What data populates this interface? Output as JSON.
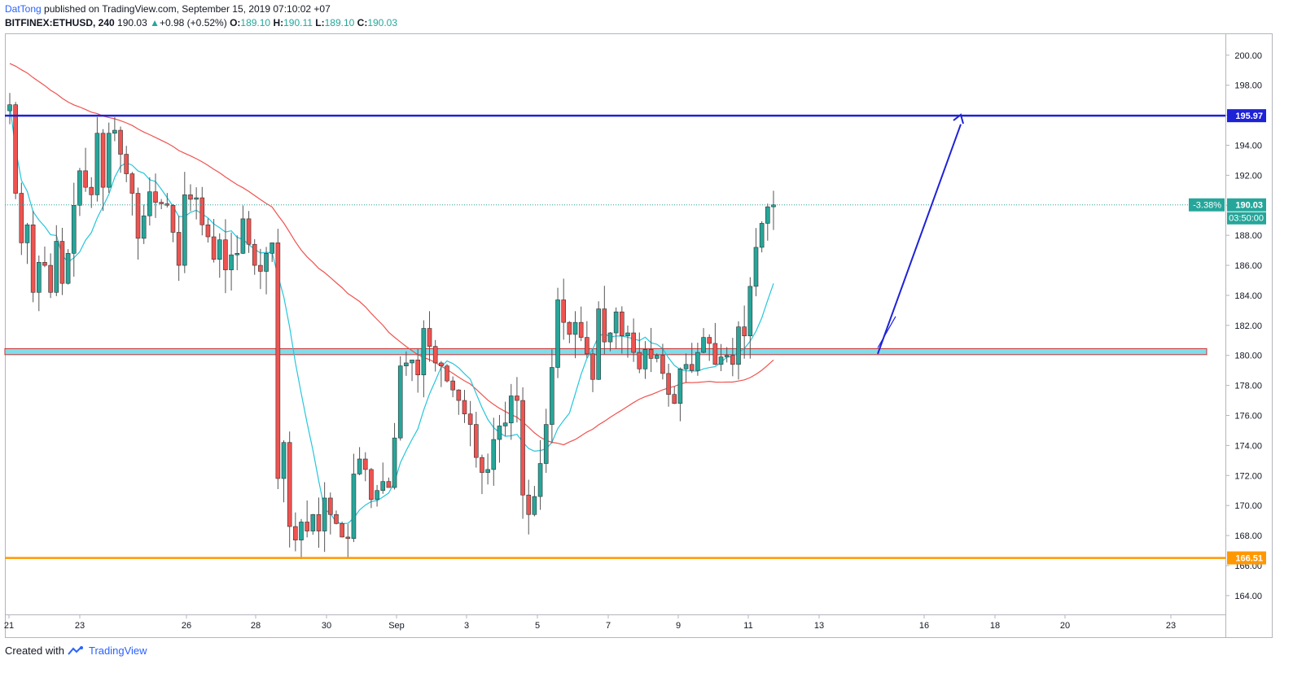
{
  "header": {
    "author": "DatTong",
    "published": "published on TradingView.com, September 15, 2019 07:10:02 +07",
    "symbol": "BITFINEX:ETHUSD",
    "interval": "240",
    "last": "190.03",
    "change": "+0.98 (+0.52%)",
    "o_label": "O:",
    "o": "189.10",
    "h_label": "H:",
    "h": "190.11",
    "l_label": "L:",
    "l": "189.10",
    "c_label": "C:",
    "c": "190.03"
  },
  "footer": {
    "created": "Created with",
    "brand": "TradingView",
    "logo_icon": "tradingview-logo-icon"
  },
  "colors": {
    "up": "#26a69a",
    "down": "#ef5350",
    "ma_fast": "#26c6da",
    "ma_slow": "#ef5350",
    "resistance": "#1e22d6",
    "support_zone": "#80deea",
    "support": "#ff9800",
    "arrow": "#1e22d6"
  },
  "chart_data": {
    "type": "candlestick",
    "symbol": "BITFINEX:ETHUSD",
    "ylim": [
      162.8,
      201.4
    ],
    "y_ticks": [
      "200.00",
      "198.00",
      "196.00",
      "194.00",
      "192.00",
      "190.00",
      "188.00",
      "186.00",
      "184.00",
      "182.00",
      "180.00",
      "178.00",
      "176.00",
      "174.00",
      "172.00",
      "170.00",
      "168.00",
      "166.00",
      "164.00"
    ],
    "x_ticks": [
      "21",
      "23",
      "26",
      "28",
      "30",
      "Sep",
      "3",
      "5",
      "7",
      "9",
      "11",
      "13",
      "16",
      "18",
      "20",
      "23"
    ],
    "levels": [
      {
        "name": "resistance",
        "price": 195.97,
        "label": "195.97"
      },
      {
        "name": "support",
        "price": 166.51,
        "label": "166.51"
      }
    ],
    "zone": {
      "low": 180.05,
      "high": 180.45
    },
    "last_price": {
      "price": 190.03,
      "label": "190.03",
      "pct": "-3.38%",
      "countdown": "03:50:00"
    },
    "closes": [
      196.7,
      190.8,
      187.5,
      188.7,
      184.2,
      186.2,
      186.0,
      184.2,
      187.6,
      184.8,
      186.8,
      190.0,
      192.3,
      191.2,
      190.7,
      194.8,
      191.2,
      194.8,
      195.0,
      193.4,
      192.1,
      190.8,
      187.8,
      189.3,
      190.9,
      190.2,
      190.1,
      190.0,
      188.2,
      186.0,
      190.7,
      190.4,
      190.5,
      188.7,
      187.9,
      186.4,
      187.7,
      185.7,
      186.7,
      186.8,
      189.1,
      187.4,
      186.0,
      185.6,
      186.8,
      187.5,
      171.8,
      174.2,
      168.6,
      167.7,
      168.9,
      168.3,
      169.4,
      168.3,
      170.5,
      169.4,
      168.8,
      167.9,
      167.8,
      172.1,
      173.1,
      172.4,
      170.4,
      171.0,
      171.6,
      171.2,
      174.5,
      179.3,
      179.5,
      179.7,
      178.7,
      181.8,
      180.6,
      179.5,
      179.3,
      178.3,
      177.7,
      177.0,
      176.1,
      175.4,
      173.2,
      172.2,
      172.4,
      174.4,
      175.3,
      175.5,
      177.3,
      177.0,
      170.7,
      169.4,
      170.6,
      172.8,
      175.4,
      179.2,
      183.7,
      182.2,
      181.4,
      182.2,
      181.2,
      180.1,
      178.4,
      183.1,
      180.9,
      181.5,
      182.9,
      181.3,
      181.5,
      180.2,
      179.1,
      180.4,
      179.8,
      180.0,
      178.8,
      177.4,
      176.8,
      179.1,
      179.4,
      179.0,
      180.2,
      181.2,
      180.8,
      179.4,
      179.9,
      180.0,
      179.4,
      181.9,
      181.3,
      184.6,
      187.2,
      188.8,
      189.9,
      190.03
    ],
    "ma_fast_name": "",
    "ma_slow_name": ""
  }
}
